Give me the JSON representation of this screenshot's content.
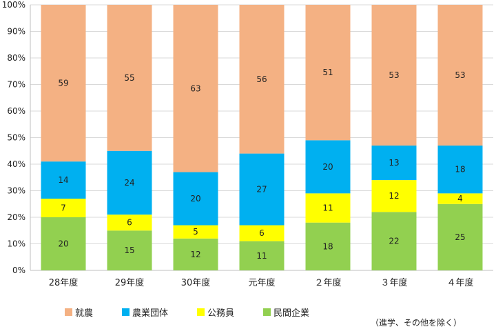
{
  "chart_data": {
    "type": "bar",
    "stacked": "percent",
    "categories": [
      "28年度",
      "29年度",
      "30年度",
      "元年度",
      "２年度",
      "３年度",
      "４年度"
    ],
    "series": [
      {
        "name": "民間企業",
        "color": "#92d050",
        "values": [
          20,
          15,
          12,
          11,
          18,
          22,
          25
        ]
      },
      {
        "name": "公務員",
        "color": "#ffff00",
        "values": [
          7,
          6,
          5,
          6,
          11,
          12,
          4
        ]
      },
      {
        "name": "農業団体",
        "color": "#00b0f0",
        "values": [
          14,
          24,
          20,
          27,
          20,
          13,
          18
        ]
      },
      {
        "name": "就農",
        "color": "#f4b183",
        "values": [
          59,
          55,
          63,
          56,
          51,
          53,
          53
        ]
      }
    ],
    "y_ticks": [
      "0%",
      "10%",
      "20%",
      "30%",
      "40%",
      "50%",
      "60%",
      "70%",
      "80%",
      "90%",
      "100%"
    ],
    "ylim": [
      0,
      100
    ],
    "grid": true,
    "legend_position": "bottom",
    "legend_order": [
      "就農",
      "農業団体",
      "公務員",
      "民間企業"
    ],
    "note": "（進学、その他を除く）"
  }
}
